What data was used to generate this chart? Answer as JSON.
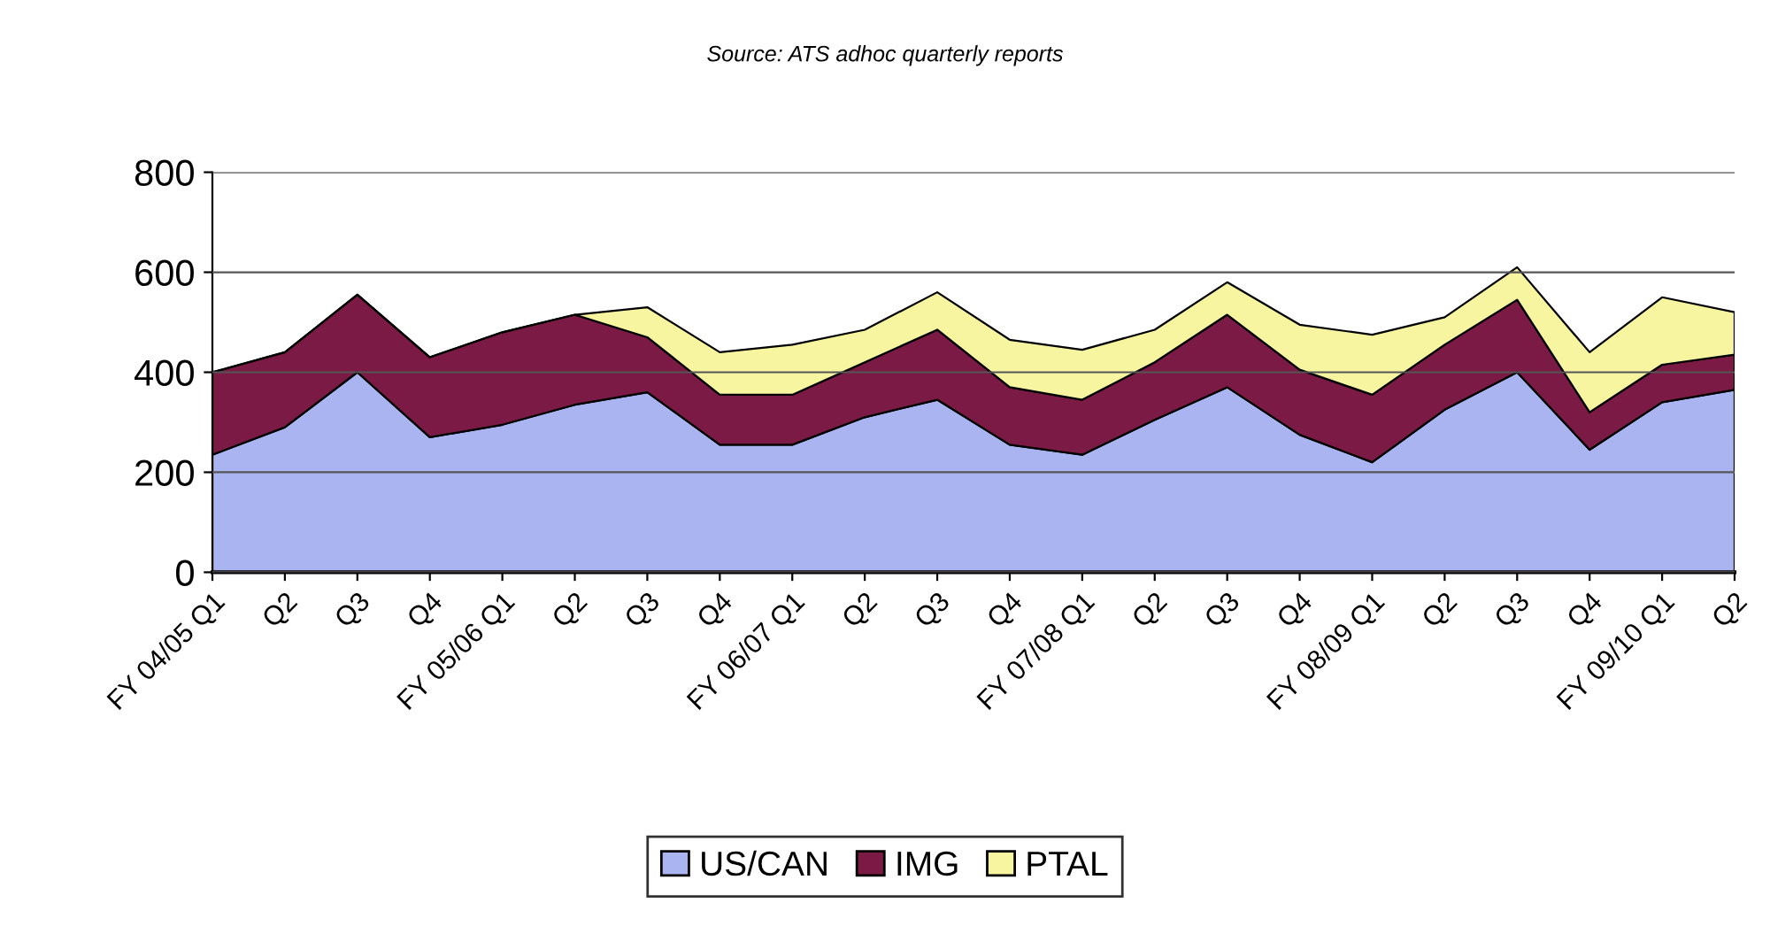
{
  "chart_data": {
    "type": "area",
    "stacked": true,
    "annotations": [
      "Source: ATS adhoc quarterly reports"
    ],
    "categories": [
      "FY 04/05 Q1",
      "Q2",
      "Q3",
      "Q4",
      "FY 05/06 Q1",
      "Q2",
      "Q3",
      "Q4",
      "FY 06/07 Q1",
      "Q2",
      "Q3",
      "Q4",
      "FY 07/08 Q1",
      "Q2",
      "Q3",
      "Q4",
      "FY 08/09 Q1",
      "Q2",
      "Q3",
      "Q4",
      "FY 09/10 Q1",
      "Q2"
    ],
    "series": [
      {
        "name": "US/CAN",
        "color": "#aab4f0",
        "values": [
          235,
          290,
          400,
          270,
          295,
          335,
          360,
          255,
          255,
          310,
          345,
          255,
          235,
          305,
          370,
          275,
          220,
          325,
          400,
          245,
          340,
          365
        ]
      },
      {
        "name": "IMG",
        "color": "#7b1a44",
        "values": [
          165,
          150,
          155,
          160,
          185,
          180,
          110,
          100,
          100,
          110,
          140,
          115,
          110,
          115,
          145,
          130,
          135,
          130,
          145,
          75,
          75,
          70
        ]
      },
      {
        "name": "PTAL",
        "color": "#f8f5a0",
        "values": [
          0,
          0,
          0,
          0,
          0,
          0,
          60,
          85,
          100,
          65,
          75,
          95,
          100,
          65,
          65,
          90,
          120,
          55,
          65,
          120,
          135,
          85
        ]
      }
    ],
    "ylim": [
      0,
      800
    ],
    "yticks": [
      0,
      200,
      400,
      600,
      800
    ],
    "grid": "y",
    "legend": "bottom"
  }
}
